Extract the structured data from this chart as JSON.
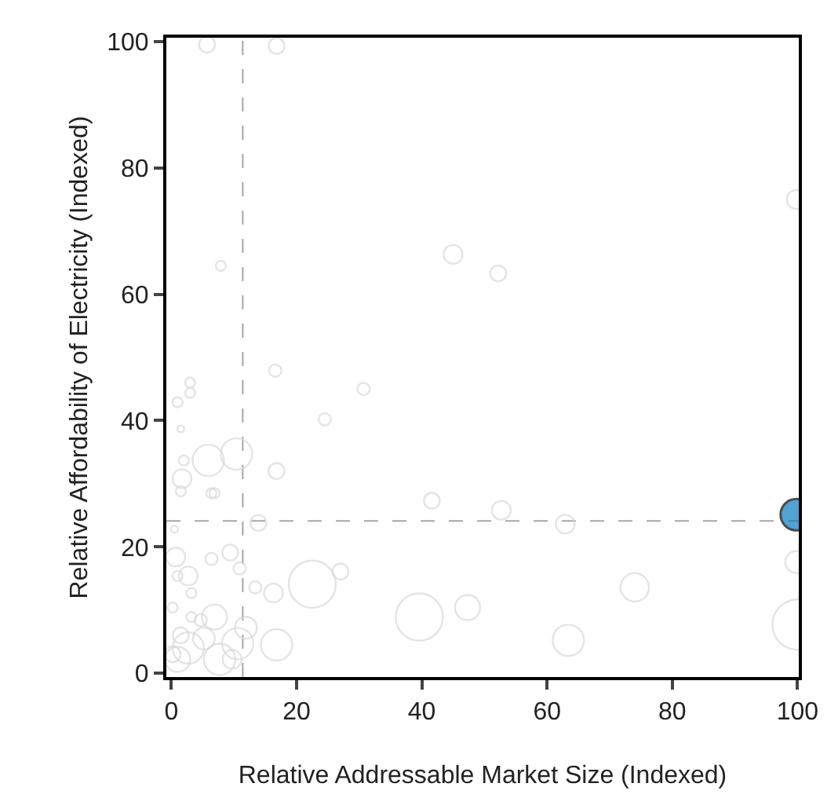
{
  "chart_data": {
    "type": "bubble",
    "xlabel": "Relative Addressable Market Size (Indexed)",
    "ylabel": "Relative Affordability of Electricity (Indexed)",
    "xlim": [
      -0.8,
      100.2
    ],
    "ylim": [
      -0.6,
      100.6
    ],
    "xticks": [
      0,
      20,
      40,
      60,
      80,
      100
    ],
    "yticks": [
      0,
      20,
      40,
      60,
      80,
      100
    ],
    "grid": false,
    "marker": "circle",
    "ref_lines": [
      {
        "axis": "x",
        "value": 11.4,
        "color": "#a6a6a6",
        "line_style": "dashed"
      },
      {
        "axis": "y",
        "value": 24.1,
        "color": "#a6a6a6",
        "line_style": "dashed"
      }
    ],
    "series": [
      {
        "color": "#d9d9d9",
        "x": [
          5.7,
          16.8,
          7.9,
          45,
          52.2,
          99.8,
          52.7,
          62.9,
          99.8,
          74,
          63.4,
          100,
          47.3,
          16.6,
          30.7,
          24.5,
          3,
          3,
          1,
          1.5,
          5.9,
          10.4,
          16.8,
          2,
          1.7,
          1.5,
          6.4,
          6.9,
          41.6,
          13.9,
          0.5,
          0.7,
          6.4,
          9.4,
          10.9,
          2.7,
          1,
          22.5,
          27,
          13.4,
          16.3,
          3.2,
          39.6,
          6.9,
          0.2,
          11.9,
          16.8,
          10.6,
          7.7,
          2.7,
          1,
          4.7,
          3.2,
          9.7,
          0.2,
          5.2,
          1.5
        ],
        "values": [
          99.5,
          99.3,
          64.5,
          66.3,
          63.3,
          75,
          25.8,
          23.6,
          17.6,
          13.6,
          5.2,
          7.7,
          10.4,
          47.9,
          45,
          40.2,
          46,
          44.4,
          42.9,
          38.7,
          33.7,
          34.7,
          32,
          33.7,
          30.8,
          28.8,
          28.5,
          28.5,
          27.3,
          23.8,
          22.8,
          18.4,
          18.1,
          19.1,
          16.6,
          15.4,
          15.4,
          14.1,
          16.1,
          13.6,
          12.7,
          12.7,
          8.9,
          8.9,
          10.4,
          7.2,
          4.5,
          4.7,
          2.2,
          4,
          2.2,
          8.4,
          8.9,
          2.2,
          3,
          5.5,
          6
        ],
        "sizes": [
          0.1,
          0.1,
          0.04,
          0.14,
          0.1,
          0.14,
          0.14,
          0.14,
          0.19,
          0.32,
          0.39,
          1,
          0.25,
          0.06,
          0.06,
          0.06,
          0.04,
          0.04,
          0.04,
          0.02,
          0.39,
          0.39,
          0.1,
          0.04,
          0.14,
          0.04,
          0.04,
          0.04,
          0.1,
          0.1,
          0.02,
          0.14,
          0.06,
          0.1,
          0.06,
          0.14,
          0.04,
          0.88,
          0.1,
          0.06,
          0.14,
          0.04,
          0.88,
          0.25,
          0.04,
          0.19,
          0.39,
          0.39,
          0.39,
          0.39,
          0.25,
          0.06,
          0.04,
          0.14,
          0.1,
          0.19,
          0.1
        ]
      },
      {
        "color": "#0a7dc0",
        "x": [
          99.8
        ],
        "values": [
          25.1
        ],
        "sizes": [
          0.39
        ]
      }
    ]
  }
}
